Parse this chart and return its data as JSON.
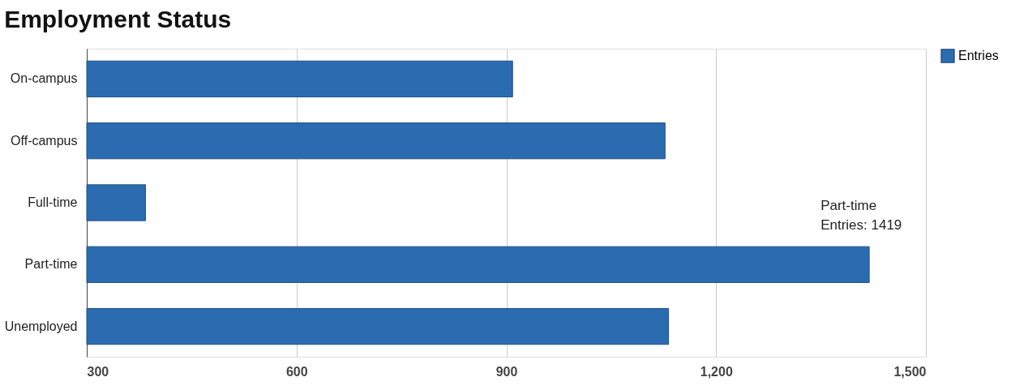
{
  "chart_data": {
    "type": "bar",
    "orientation": "horizontal",
    "title": "Employment Status",
    "categories": [
      "On-campus",
      "Off-campus",
      "Full-time",
      "Part-time",
      "Unemployed"
    ],
    "series": [
      {
        "name": "Entries",
        "color": "#2b6cb0",
        "values": [
          909,
          1127,
          384,
          1419,
          1132
        ]
      }
    ],
    "xlim": [
      300,
      1500
    ],
    "xticks": [
      300,
      600,
      900,
      {
        "value": 1200,
        "label": "1,200"
      },
      {
        "value": 1500,
        "label": "1,500"
      }
    ],
    "grid": "x",
    "legend": "top right",
    "annotations": [
      {
        "text": "Part-time\nEntries: 1419",
        "x": 1419,
        "y": "Part-time"
      }
    ]
  }
}
